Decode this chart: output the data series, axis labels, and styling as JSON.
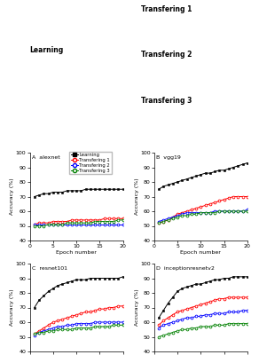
{
  "epochs": [
    1,
    2,
    3,
    4,
    5,
    6,
    7,
    8,
    9,
    10,
    11,
    12,
    13,
    14,
    15,
    16,
    17,
    18,
    19,
    20
  ],
  "alexnet": {
    "learning": [
      70,
      71,
      72,
      72,
      73,
      73,
      73,
      74,
      74,
      74,
      74,
      75,
      75,
      75,
      75,
      75,
      75,
      75,
      75,
      75
    ],
    "transfer1": [
      51,
      52,
      52,
      52,
      53,
      53,
      53,
      53,
      54,
      54,
      54,
      54,
      54,
      54,
      54,
      55,
      55,
      55,
      55,
      55
    ],
    "transfer2": [
      51,
      51,
      51,
      51,
      51,
      51,
      51,
      51,
      51,
      51,
      51,
      51,
      51,
      51,
      51,
      51,
      51,
      51,
      51,
      51
    ],
    "transfer3": [
      50,
      50,
      50,
      51,
      51,
      51,
      51,
      52,
      52,
      52,
      52,
      52,
      52,
      53,
      53,
      53,
      53,
      53,
      54,
      54
    ]
  },
  "vgg19": {
    "learning": [
      75,
      77,
      78,
      79,
      80,
      81,
      82,
      83,
      84,
      85,
      86,
      86,
      87,
      88,
      88,
      89,
      90,
      91,
      92,
      93
    ],
    "transfer1": [
      52,
      53,
      54,
      56,
      58,
      59,
      60,
      61,
      62,
      63,
      64,
      65,
      66,
      67,
      68,
      69,
      70,
      70,
      70,
      70
    ],
    "transfer2": [
      53,
      54,
      55,
      56,
      57,
      58,
      59,
      59,
      59,
      59,
      59,
      59,
      60,
      60,
      60,
      60,
      60,
      60,
      60,
      61
    ],
    "transfer3": [
      52,
      53,
      54,
      55,
      56,
      57,
      57,
      58,
      58,
      59,
      59,
      59,
      59,
      60,
      60,
      60,
      60,
      60,
      60,
      60
    ]
  },
  "resnet101": {
    "learning": [
      70,
      75,
      78,
      81,
      83,
      85,
      86,
      87,
      88,
      89,
      89,
      89,
      90,
      90,
      90,
      90,
      90,
      90,
      90,
      91
    ],
    "transfer1": [
      52,
      54,
      56,
      58,
      60,
      61,
      62,
      63,
      64,
      65,
      66,
      67,
      67,
      68,
      69,
      69,
      70,
      70,
      71,
      71
    ],
    "transfer2": [
      51,
      53,
      54,
      55,
      56,
      57,
      57,
      58,
      58,
      59,
      59,
      59,
      59,
      60,
      60,
      60,
      60,
      60,
      60,
      60
    ],
    "transfer3": [
      52,
      53,
      53,
      54,
      54,
      55,
      55,
      55,
      55,
      56,
      56,
      56,
      56,
      57,
      57,
      57,
      57,
      58,
      58,
      58
    ]
  },
  "inceptionresnetv2": {
    "learning": [
      63,
      68,
      73,
      77,
      81,
      83,
      84,
      85,
      86,
      86,
      87,
      88,
      89,
      89,
      90,
      90,
      91,
      91,
      91,
      91
    ],
    "transfer1": [
      58,
      61,
      63,
      65,
      67,
      68,
      69,
      70,
      71,
      72,
      73,
      74,
      75,
      76,
      76,
      77,
      77,
      77,
      77,
      77
    ],
    "transfer2": [
      56,
      58,
      59,
      60,
      61,
      62,
      63,
      63,
      64,
      64,
      65,
      65,
      66,
      66,
      66,
      67,
      67,
      67,
      68,
      68
    ],
    "transfer3": [
      50,
      51,
      52,
      53,
      54,
      55,
      55,
      56,
      56,
      57,
      57,
      57,
      58,
      58,
      58,
      59,
      59,
      59,
      59,
      59
    ]
  },
  "colors": {
    "learning": "#000000",
    "transfer1": "#ff0000",
    "transfer2": "#0000ff",
    "transfer3": "#008000"
  },
  "ylim": [
    40,
    100
  ],
  "yticks": [
    40,
    50,
    60,
    70,
    80,
    90,
    100
  ],
  "xlim": [
    0,
    20
  ],
  "xticks": [
    0,
    5,
    10,
    15,
    20
  ]
}
